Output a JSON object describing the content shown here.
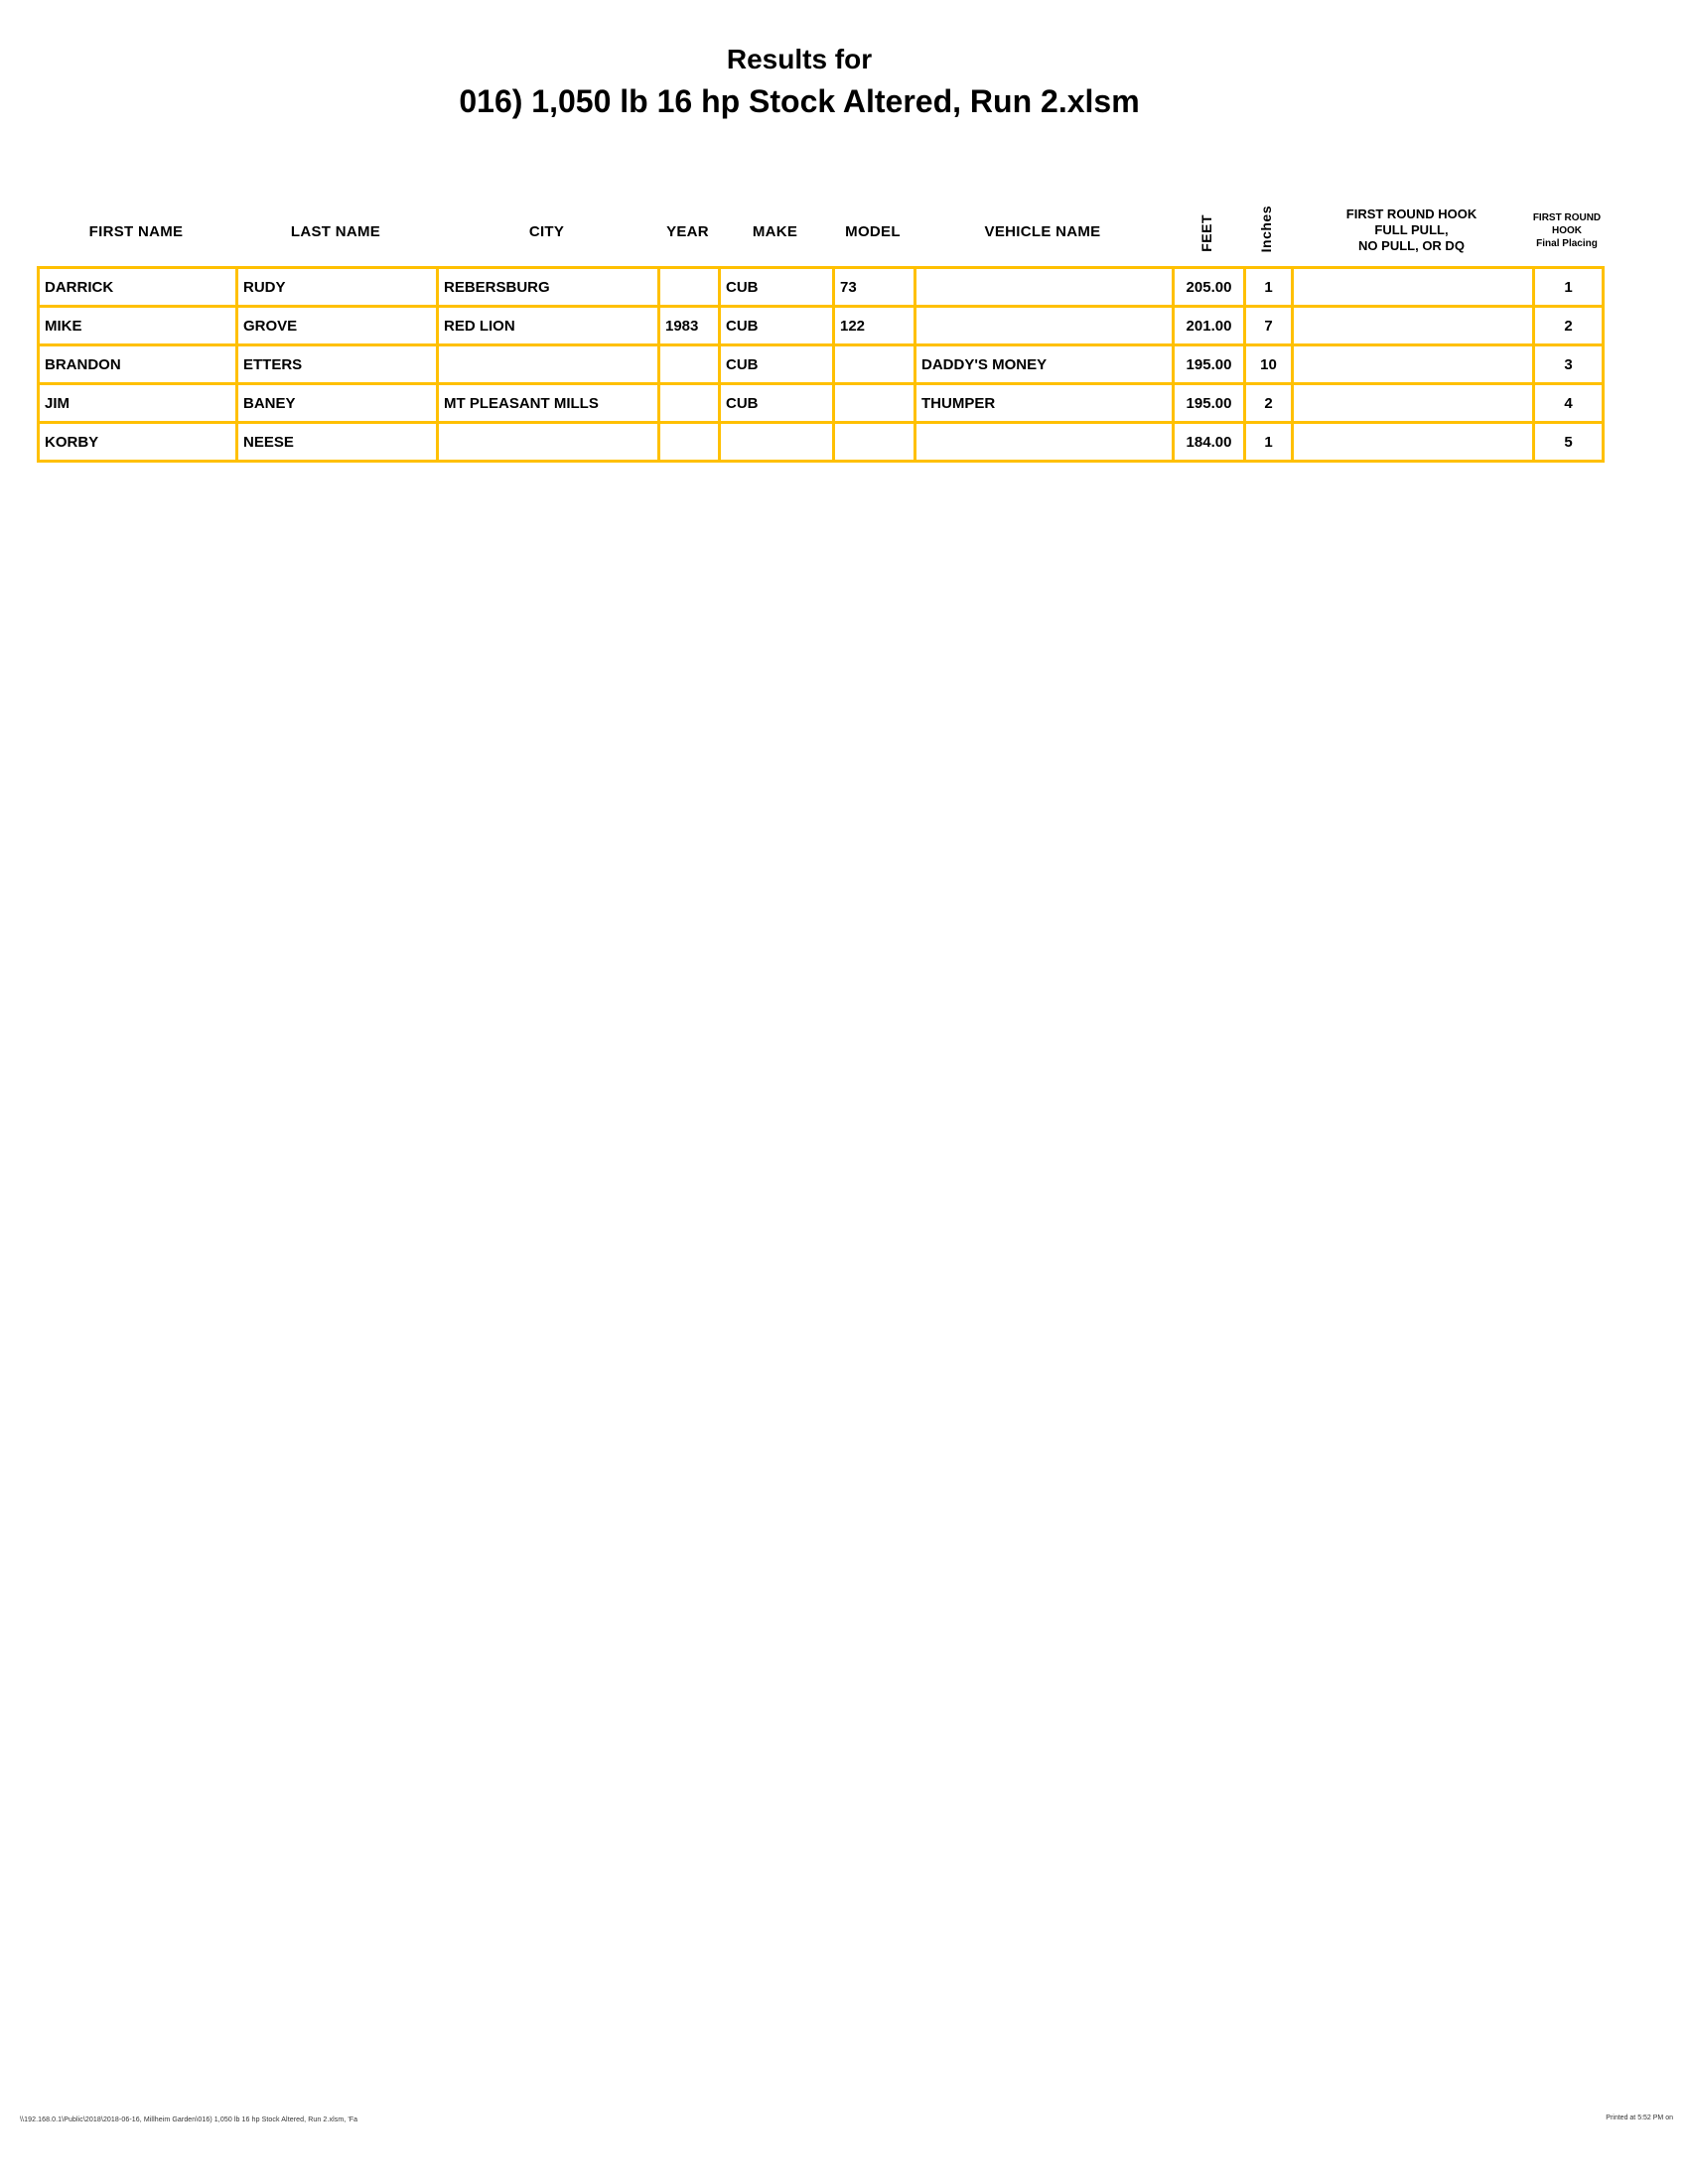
{
  "title": {
    "line1": "Results for",
    "line2": "016) 1,050 lb 16 hp Stock Altered, Run 2.xlsm"
  },
  "table": {
    "columns": [
      {
        "key": "first_name",
        "label": "FIRST NAME"
      },
      {
        "key": "last_name",
        "label": "LAST NAME"
      },
      {
        "key": "city",
        "label": "CITY"
      },
      {
        "key": "year",
        "label": "YEAR"
      },
      {
        "key": "make",
        "label": "MAKE"
      },
      {
        "key": "model",
        "label": "MODEL"
      },
      {
        "key": "vehicle_name",
        "label": "VEHICLE NAME"
      },
      {
        "key": "feet",
        "label": "FEET"
      },
      {
        "key": "inches",
        "label": "Inches"
      },
      {
        "key": "first_round_hook",
        "label": "FIRST ROUND HOOK\nFULL PULL,\nNO PULL, OR DQ"
      },
      {
        "key": "final_placing",
        "label": "FIRST ROUND\nHOOK\nFinal Placing"
      }
    ],
    "rows": [
      [
        "DARRICK",
        "RUDY",
        "REBERSBURG",
        "",
        "CUB",
        "73",
        "",
        "205.00",
        "1",
        "",
        "1"
      ],
      [
        "MIKE",
        "GROVE",
        "RED LION",
        "1983",
        "CUB",
        "122",
        "",
        "201.00",
        "7",
        "",
        "2"
      ],
      [
        "BRANDON",
        "ETTERS",
        "",
        "",
        "CUB",
        "",
        "DADDY'S MONEY",
        "195.00",
        "10",
        "",
        "3"
      ],
      [
        "JIM",
        "BANEY",
        "MT PLEASANT MILLS",
        "",
        "CUB",
        "",
        "THUMPER",
        "195.00",
        "2",
        "",
        "4"
      ],
      [
        "KORBY",
        "NEESE",
        "",
        "",
        "",
        "",
        "",
        "184.00",
        "1",
        "",
        "5"
      ]
    ]
  },
  "footer": {
    "left": "\\\\192.168.0.1\\Public\\2018\\2018-06-16, Millheim Garden\\016) 1,050 lb 16 hp Stock Altered, Run 2.xlsm, 'Fa",
    "right": "Printed at 5:52 PM on"
  },
  "colors": {
    "border": "#FFC000",
    "text": "#000000"
  }
}
